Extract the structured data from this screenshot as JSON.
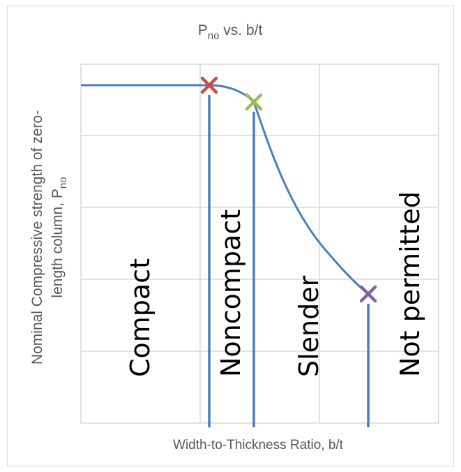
{
  "chart_data": {
    "type": "line",
    "title": {
      "main": "P",
      "sub": "no",
      "rest": " vs. b/t"
    },
    "xlabel": "Width-to-Thickness Ratio, b/t",
    "ylabel": {
      "line1": "Nominal Compressive strength of zero-",
      "line2": "length column, P",
      "sub": "no"
    },
    "x_ticks": [],
    "y_ticks": [],
    "grid": "on",
    "legend": "none",
    "series": [
      {
        "color": "#4a7ebb"
      }
    ],
    "limits": [
      {
        "color": "#c0504d"
      },
      {
        "color": "#9bbb59"
      },
      {
        "color": "#8064a2"
      }
    ],
    "regions": [
      {
        "label": "Compact"
      },
      {
        "label": "Noncompact"
      },
      {
        "label": "Slender"
      },
      {
        "label": "Not permitted"
      }
    ],
    "curve_color": "#4a7ebb",
    "gridline_color": "#d9d9d9"
  }
}
